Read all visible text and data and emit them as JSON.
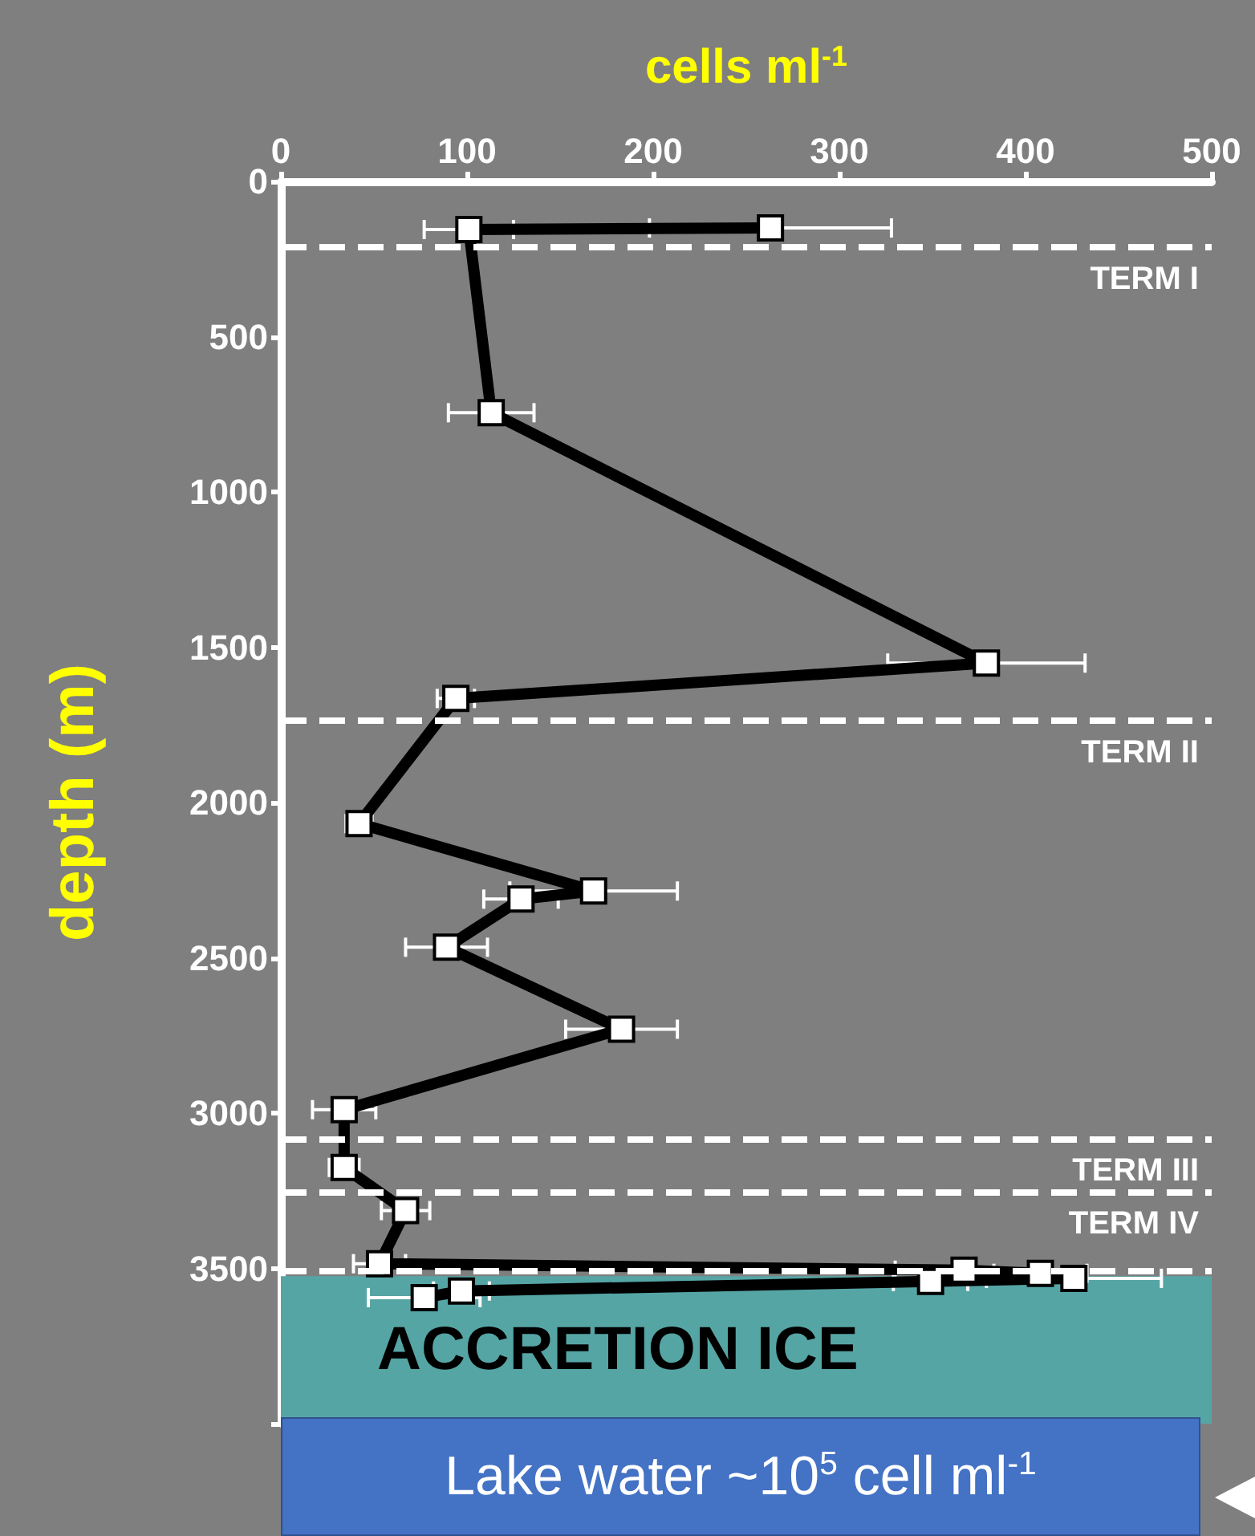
{
  "chart_data": {
    "type": "line",
    "xlabel": "cells ml$^{-1}$",
    "ylabel": "depth (m)",
    "xlim": [
      0,
      500
    ],
    "xticks": [
      0,
      100,
      200,
      300,
      400,
      500
    ],
    "ylim": [
      4000,
      0
    ],
    "yticks": [
      0,
      500,
      1000,
      1500,
      2000,
      2500,
      3000,
      3500,
      {
        "value": 4000,
        "label": null
      }
    ],
    "marker": "square",
    "line_style": "solid",
    "grid": false,
    "series": [
      {
        "color": "#000000",
        "x": [
          263,
          101,
          113,
          379,
          94,
          42,
          168,
          129,
          89,
          183,
          34,
          34,
          67,
          53,
          367,
          408,
          426,
          349,
          97,
          77
        ],
        "values": [
          150,
          155,
          745,
          1551,
          1665,
          2068,
          2285,
          2311,
          2466,
          2730,
          2989,
          3175,
          3314,
          3485,
          3506,
          3516,
          3532,
          3542,
          3573,
          3594
        ],
        "xerrors": [
          65,
          24,
          23,
          53,
          10,
          7,
          45,
          20,
          22,
          30,
          17,
          8,
          13,
          14,
          37,
          25,
          47,
          20,
          15,
          30
        ]
      }
    ],
    "ref_lines": [
      {
        "axis": "y",
        "value": 212,
        "label": "TERM I",
        "color": "#ffffff",
        "line_style": "dashed"
      },
      {
        "axis": "y",
        "value": 1737,
        "label": "TERM II",
        "color": "#ffffff",
        "line_style": "dashed"
      },
      {
        "axis": "y",
        "value": 3082,
        "label": "TERM III",
        "color": "#ffffff",
        "line_style": "dashed"
      },
      {
        "axis": "y",
        "value": 3252,
        "label": "TERM IV",
        "color": "#ffffff",
        "line_style": "dashed"
      },
      {
        "axis": "y",
        "value": 3506,
        "label": null,
        "color": "#ffffff",
        "line_style": "dashed"
      }
    ],
    "bands": [
      {
        "axis": "y",
        "from": 3525,
        "to": 4000,
        "label": "ACCRETION ICE",
        "color": "#56a5a5"
      }
    ],
    "annotations": [
      "Lake water ~10$^{5}$ cell ml$^{-1}$"
    ]
  }
}
